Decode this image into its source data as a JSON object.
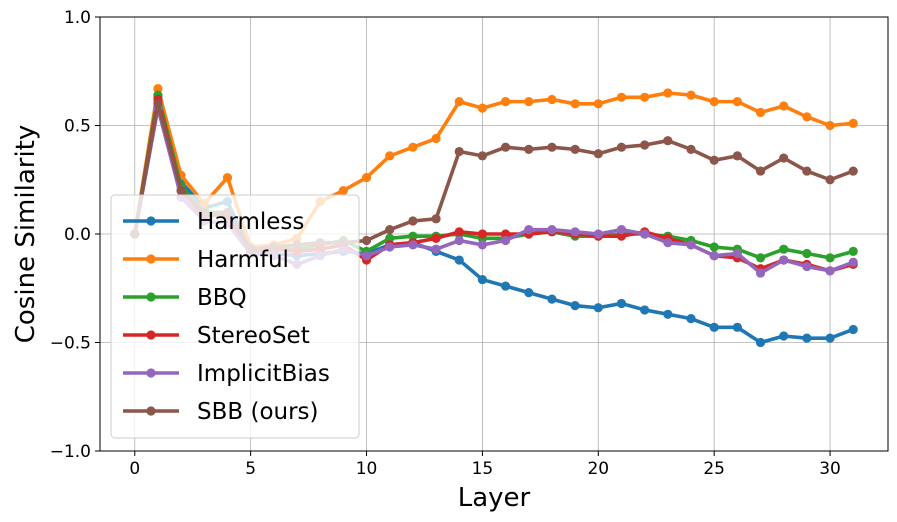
{
  "chart_data": {
    "type": "line",
    "title": "",
    "xlabel": "Layer",
    "ylabel": "Cosine Similarity",
    "xlim": [
      -1.5,
      32.5
    ],
    "ylim": [
      -1.0,
      1.0
    ],
    "x_ticks": [
      0,
      5,
      10,
      15,
      20,
      25,
      30
    ],
    "x_tick_labels": [
      "0",
      "5",
      "10",
      "15",
      "20",
      "25",
      "30"
    ],
    "y_ticks": [
      -1.0,
      -0.5,
      0.0,
      0.5,
      1.0
    ],
    "y_tick_labels": [
      "−1.0",
      "−0.5",
      "0.0",
      "0.5",
      "1.0"
    ],
    "grid": true,
    "legend_position": "lower-left",
    "x": [
      0,
      1,
      2,
      3,
      4,
      5,
      6,
      7,
      8,
      9,
      10,
      11,
      12,
      13,
      14,
      15,
      16,
      17,
      18,
      19,
      20,
      21,
      22,
      23,
      24,
      25,
      26,
      27,
      28,
      29,
      30,
      31
    ],
    "series": [
      {
        "name": "Harmless",
        "color": "#1f77b4",
        "values": [
          0.0,
          0.63,
          0.24,
          0.12,
          0.15,
          -0.08,
          -0.09,
          -0.1,
          -0.09,
          -0.08,
          -0.09,
          -0.05,
          -0.04,
          -0.08,
          -0.12,
          -0.21,
          -0.24,
          -0.27,
          -0.3,
          -0.33,
          -0.34,
          -0.32,
          -0.35,
          -0.37,
          -0.39,
          -0.43,
          -0.43,
          -0.5,
          -0.47,
          -0.48,
          -0.48,
          -0.44
        ]
      },
      {
        "name": "Harmful",
        "color": "#ff7f0e",
        "values": [
          0.0,
          0.67,
          0.27,
          0.14,
          0.26,
          -0.06,
          -0.05,
          -0.02,
          0.15,
          0.2,
          0.26,
          0.36,
          0.4,
          0.44,
          0.61,
          0.58,
          0.61,
          0.61,
          0.62,
          0.6,
          0.6,
          0.63,
          0.63,
          0.65,
          0.64,
          0.61,
          0.61,
          0.56,
          0.59,
          0.54,
          0.5,
          0.51
        ]
      },
      {
        "name": "BBQ",
        "color": "#2ca02c",
        "values": [
          0.0,
          0.64,
          0.22,
          0.1,
          0.1,
          -0.07,
          -0.07,
          -0.07,
          -0.05,
          -0.03,
          -0.08,
          -0.02,
          -0.01,
          -0.01,
          0.0,
          -0.02,
          -0.02,
          0.0,
          0.01,
          -0.01,
          -0.01,
          0.0,
          0.0,
          -0.01,
          -0.03,
          -0.06,
          -0.07,
          -0.11,
          -0.07,
          -0.09,
          -0.11,
          -0.08
        ]
      },
      {
        "name": "StereoSet",
        "color": "#d62728",
        "values": [
          0.0,
          0.62,
          0.2,
          0.09,
          0.08,
          -0.07,
          -0.07,
          -0.08,
          -0.07,
          -0.05,
          -0.12,
          -0.05,
          -0.04,
          -0.02,
          0.01,
          0.0,
          0.0,
          0.0,
          0.01,
          0.0,
          -0.01,
          -0.01,
          0.01,
          -0.02,
          -0.05,
          -0.1,
          -0.11,
          -0.16,
          -0.12,
          -0.14,
          -0.17,
          -0.14
        ]
      },
      {
        "name": "ImplicitBias",
        "color": "#9467bd",
        "values": [
          0.0,
          0.58,
          0.17,
          0.06,
          0.05,
          -0.09,
          -0.1,
          -0.14,
          -0.1,
          -0.07,
          -0.1,
          -0.06,
          -0.05,
          -0.07,
          -0.03,
          -0.05,
          -0.03,
          0.02,
          0.02,
          0.01,
          0.0,
          0.02,
          0.0,
          -0.04,
          -0.05,
          -0.1,
          -0.09,
          -0.18,
          -0.12,
          -0.15,
          -0.17,
          -0.13
        ]
      },
      {
        "name": "SBB (ours)",
        "color": "#8c564b",
        "values": [
          0.0,
          0.6,
          0.2,
          0.08,
          0.1,
          -0.07,
          -0.06,
          -0.05,
          -0.04,
          -0.04,
          -0.03,
          0.02,
          0.06,
          0.07,
          0.38,
          0.36,
          0.4,
          0.39,
          0.4,
          0.39,
          0.37,
          0.4,
          0.41,
          0.43,
          0.39,
          0.34,
          0.36,
          0.29,
          0.35,
          0.29,
          0.25,
          0.29
        ]
      }
    ]
  }
}
